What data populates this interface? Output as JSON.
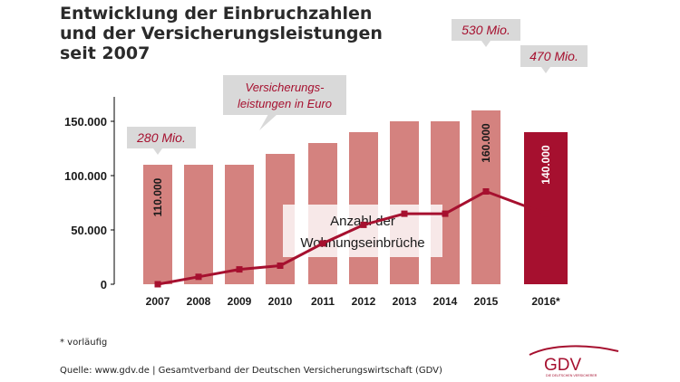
{
  "header": {
    "title": "Entwicklung der Einbruchzahlen und der Versicherungsleistungen seit 2007"
  },
  "chart_data": {
    "type": "bar",
    "title": "Entwicklung der Einbruchzahlen und der Versicherungsleistungen seit 2007",
    "categories": [
      "2007",
      "2008",
      "2009",
      "2010",
      "2011",
      "2012",
      "2013",
      "2014",
      "2015",
      "2016*"
    ],
    "ylim": [
      0,
      170000
    ],
    "yticks": [
      {
        "value": 0,
        "label": "0"
      },
      {
        "value": 50000,
        "label": "50.000"
      },
      {
        "value": 100000,
        "label": "100.000"
      },
      {
        "value": 150000,
        "label": "150.000"
      }
    ],
    "series": [
      {
        "name": "Anzahl der Wohnungseinbrüche",
        "type": "bar",
        "values": [
          110000,
          110000,
          110000,
          120000,
          130000,
          140000,
          150000,
          150000,
          160000,
          140000
        ],
        "color": "#d4827f",
        "highlight_color": "#a6102f",
        "data_labels": [
          {
            "index": 0,
            "text": "110.000"
          },
          {
            "index": 8,
            "text": "160.000"
          },
          {
            "index": 9,
            "text": "140.000"
          }
        ]
      },
      {
        "name": "Versicherungsleistungen in Euro",
        "type": "line",
        "unit": "Mio. Euro",
        "values": [
          280,
          300,
          320,
          330,
          390,
          440,
          470,
          470,
          530,
          470
        ],
        "color": "#a6102f",
        "callouts": [
          {
            "index": 0,
            "text": "280 Mio."
          },
          {
            "index": 8,
            "text": "530 Mio."
          },
          {
            "index": 9,
            "text": "470 Mio."
          }
        ]
      }
    ],
    "annotations": {
      "bar_series_label": "Anzahl der Wohnungseinbrüche",
      "bar_series_label_lines": [
        "Anzahl der",
        "Wohnungseinbrüche"
      ],
      "line_series_label_lines": [
        "Versicherungs-",
        "leistungen in Euro"
      ]
    }
  },
  "footnote": "* vorläufig",
  "source": "Quelle: www.gdv.de | Gesamtverband der Deutschen Versicherungswirtschaft (GDV)",
  "logo": {
    "text": "GDV",
    "subtext": "DIE DEUTSCHEN VERSICHERER"
  },
  "colors": {
    "bar": "#d4827f",
    "highlight": "#a6102f",
    "line": "#a6102f",
    "label_box": "#d9d9d9",
    "axis": "#000000"
  }
}
